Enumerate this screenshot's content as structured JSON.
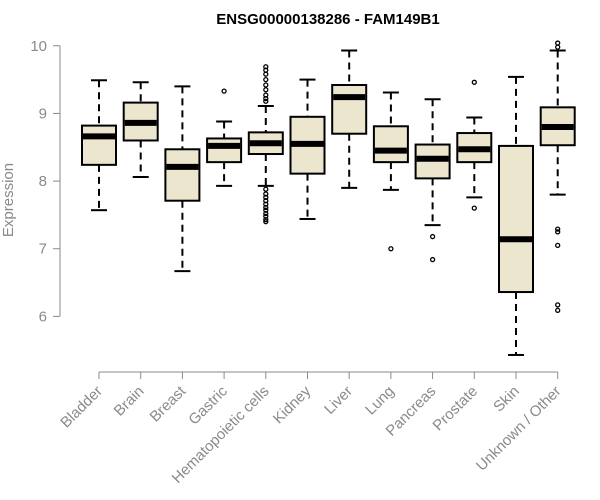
{
  "chart_data": {
    "type": "boxplot",
    "title": "ENSG00000138286 - FAM149B1",
    "ylabel": "Expression",
    "xlabel": "",
    "ylim": [
      5.4,
      10.1
    ],
    "yticks": [
      6,
      7,
      8,
      9,
      10
    ],
    "ytick_labels": [
      "6",
      "7",
      "8",
      "9",
      "10"
    ],
    "grid": false,
    "colors": {
      "box_fill": "#ede6cf",
      "box_stroke": "#000000",
      "axis": "#8a8a8a"
    },
    "categories": [
      "Bladder",
      "Brain",
      "Breast",
      "Gastric",
      "Hematopoietic cells",
      "Kidney",
      "Liver",
      "Lung",
      "Pancreas",
      "Prostate",
      "Skin",
      "Unknown / Other"
    ],
    "boxes": [
      {
        "min": 7.57,
        "q1": 8.24,
        "median": 8.66,
        "q3": 8.82,
        "max": 9.49,
        "outliers": []
      },
      {
        "min": 8.06,
        "q1": 8.6,
        "median": 8.86,
        "q3": 9.16,
        "max": 9.46,
        "outliers": []
      },
      {
        "min": 6.67,
        "q1": 7.71,
        "median": 8.21,
        "q3": 8.47,
        "max": 9.4,
        "outliers": []
      },
      {
        "min": 7.93,
        "q1": 8.28,
        "median": 8.52,
        "q3": 8.63,
        "max": 8.88,
        "outliers": [
          9.33
        ]
      },
      {
        "min": 7.93,
        "q1": 8.4,
        "median": 8.56,
        "q3": 8.72,
        "max": 9.11,
        "outliers": [
          9.18,
          9.22,
          9.27,
          9.35,
          9.42,
          9.5,
          9.58,
          9.64,
          9.69,
          7.88,
          7.81,
          7.76,
          7.71,
          7.66,
          7.61,
          7.57,
          7.52,
          7.48,
          7.43,
          7.4
        ]
      },
      {
        "min": 7.44,
        "q1": 8.11,
        "median": 8.55,
        "q3": 8.95,
        "max": 9.5,
        "outliers": []
      },
      {
        "min": 7.9,
        "q1": 8.7,
        "median": 9.24,
        "q3": 9.42,
        "max": 9.93,
        "outliers": []
      },
      {
        "min": 7.87,
        "q1": 8.28,
        "median": 8.45,
        "q3": 8.81,
        "max": 9.31,
        "outliers": [
          7.0
        ]
      },
      {
        "min": 7.35,
        "q1": 8.04,
        "median": 8.33,
        "q3": 8.54,
        "max": 9.21,
        "outliers": [
          7.18,
          6.84
        ]
      },
      {
        "min": 7.76,
        "q1": 8.28,
        "median": 8.47,
        "q3": 8.71,
        "max": 8.94,
        "outliers": [
          9.46,
          7.6
        ]
      },
      {
        "min": 5.43,
        "q1": 6.36,
        "median": 7.14,
        "q3": 8.52,
        "max": 9.54,
        "outliers": []
      },
      {
        "min": 7.8,
        "q1": 8.53,
        "median": 8.8,
        "q3": 9.09,
        "max": 9.93,
        "outliers": [
          10.04,
          9.98,
          7.29,
          7.25,
          7.05,
          6.17,
          6.09
        ]
      }
    ]
  }
}
